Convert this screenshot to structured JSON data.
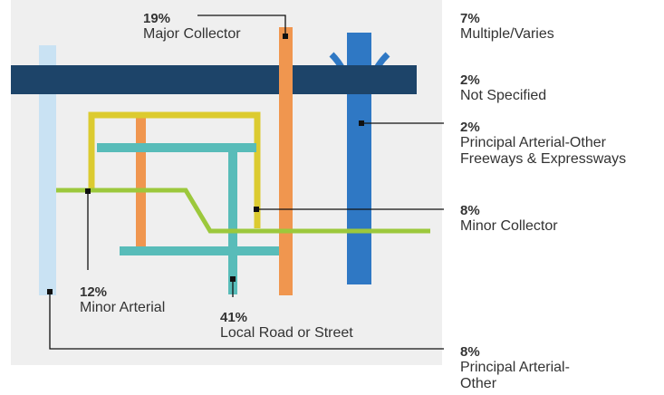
{
  "items": [
    {
      "percent": "19%",
      "label": [
        "Major Collector"
      ]
    },
    {
      "percent": "7%",
      "label": [
        "Multiple/Varies"
      ]
    },
    {
      "percent": "2%",
      "label": [
        "Not Specified"
      ]
    },
    {
      "percent": "2%",
      "label": [
        "Principal Arterial-Other",
        "Freeways & Expressways"
      ]
    },
    {
      "percent": "8%",
      "label": [
        "Minor Collector"
      ]
    },
    {
      "percent": "12%",
      "label": [
        "Minor Arterial"
      ]
    },
    {
      "percent": "41%",
      "label": [
        "Local Road or Street"
      ]
    },
    {
      "percent": "8%",
      "label": [
        "Principal Arterial-",
        "Other"
      ]
    }
  ]
}
